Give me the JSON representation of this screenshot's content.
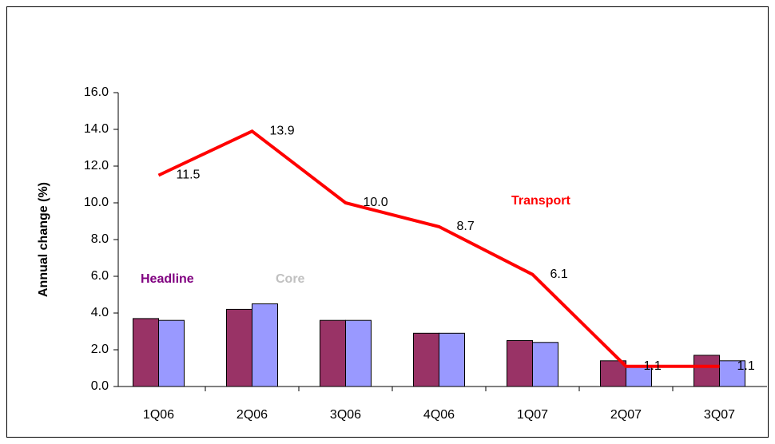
{
  "chart_data": {
    "type": "bar_line",
    "y_label": "Annual change (%)",
    "categories": [
      "1Q06",
      "2Q06",
      "3Q06",
      "4Q06",
      "1Q07",
      "2Q07",
      "3Q07"
    ],
    "series": [
      {
        "name": "Headline",
        "type": "bar",
        "color": "#993366",
        "legend_color": "#800080",
        "values": [
          3.7,
          4.2,
          3.6,
          2.9,
          2.5,
          1.4,
          1.7
        ]
      },
      {
        "name": "Core",
        "type": "bar",
        "color": "#9999ff",
        "legend_color": "#c0c0c0",
        "values": [
          3.6,
          4.5,
          3.6,
          2.9,
          2.4,
          1.1,
          1.4
        ]
      },
      {
        "name": "Transport",
        "type": "line",
        "color": "#ff0000",
        "legend_color": "#ff0000",
        "values": [
          11.5,
          13.9,
          10.0,
          8.7,
          6.1,
          1.1,
          1.1
        ],
        "value_labels": [
          "11.5",
          "13.9",
          "10.0",
          "8.7",
          "6.1",
          "1.1",
          "1.1"
        ]
      }
    ],
    "ylim": [
      0,
      16
    ],
    "yticks": [
      {
        "value": 0,
        "label": "0.0"
      },
      {
        "value": 2,
        "label": "2.0"
      },
      {
        "value": 4,
        "label": "4.0"
      },
      {
        "value": 6,
        "label": "6.0"
      },
      {
        "value": 8,
        "label": "8.0"
      },
      {
        "value": 10,
        "label": "10.0"
      },
      {
        "value": 12,
        "label": "12.0"
      },
      {
        "value": 14,
        "label": "14.0"
      },
      {
        "value": 16,
        "label": "16.0"
      }
    ]
  }
}
